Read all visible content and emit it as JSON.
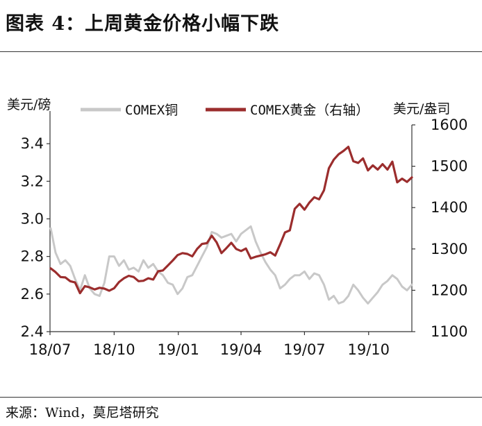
{
  "title": "图表 4：上周黄金价格小幅下跌",
  "source": "来源：Wind，莫尼塔研究",
  "colors": {
    "copper": "#c8c8c8",
    "gold": "#9b2d2d",
    "axis": "#333333"
  },
  "chart_data": {
    "type": "line",
    "x_tick_labels": [
      "18/07",
      "18/10",
      "19/01",
      "19/04",
      "19/07",
      "19/10"
    ],
    "left_axis": {
      "unit": "美元/磅",
      "ylim": [
        2.4,
        3.5
      ],
      "ticks": [
        "2.4",
        "2.6",
        "2.8",
        "3.0",
        "3.2",
        "3.4"
      ]
    },
    "right_axis": {
      "unit": "美元/盎司",
      "ylim": [
        1100,
        1600
      ],
      "ticks": [
        "1100",
        "1200",
        "1300",
        "1400",
        "1500",
        "1600"
      ]
    },
    "series": [
      {
        "name": "COMEX铜",
        "axis": "left",
        "x": [
          "2018-07-02",
          "2018-07-09",
          "2018-07-16",
          "2018-07-23",
          "2018-07-30",
          "2018-08-06",
          "2018-08-13",
          "2018-08-20",
          "2018-08-27",
          "2018-09-03",
          "2018-09-10",
          "2018-09-17",
          "2018-09-24",
          "2018-10-01",
          "2018-10-08",
          "2018-10-15",
          "2018-10-22",
          "2018-10-29",
          "2018-11-05",
          "2018-11-12",
          "2018-11-19",
          "2018-11-26",
          "2018-12-03",
          "2018-12-10",
          "2018-12-17",
          "2018-12-24",
          "2018-12-31",
          "2019-01-07",
          "2019-01-14",
          "2019-01-21",
          "2019-01-28",
          "2019-02-04",
          "2019-02-11",
          "2019-02-18",
          "2019-02-25",
          "2019-03-04",
          "2019-03-11",
          "2019-03-18",
          "2019-03-25",
          "2019-04-01",
          "2019-04-08",
          "2019-04-15",
          "2019-04-22",
          "2019-04-29",
          "2019-05-06",
          "2019-05-13",
          "2019-05-20",
          "2019-05-27",
          "2019-06-03",
          "2019-06-10",
          "2019-06-17",
          "2019-06-24",
          "2019-07-01",
          "2019-07-08",
          "2019-07-15",
          "2019-07-22",
          "2019-07-29",
          "2019-08-05",
          "2019-08-12",
          "2019-08-19",
          "2019-08-26",
          "2019-09-02",
          "2019-09-09",
          "2019-09-16",
          "2019-09-23",
          "2019-09-30",
          "2019-10-07",
          "2019-10-14",
          "2019-10-21",
          "2019-10-28",
          "2019-11-04",
          "2019-11-11",
          "2019-11-18",
          "2019-11-25",
          "2019-12-02"
        ],
        "values": [
          2.95,
          2.82,
          2.76,
          2.78,
          2.75,
          2.68,
          2.62,
          2.7,
          2.63,
          2.6,
          2.59,
          2.66,
          2.8,
          2.8,
          2.75,
          2.78,
          2.73,
          2.74,
          2.72,
          2.78,
          2.74,
          2.76,
          2.72,
          2.7,
          2.66,
          2.65,
          2.6,
          2.63,
          2.69,
          2.7,
          2.75,
          2.8,
          2.85,
          2.93,
          2.92,
          2.9,
          2.91,
          2.92,
          2.88,
          2.92,
          2.94,
          2.96,
          2.88,
          2.82,
          2.77,
          2.73,
          2.7,
          2.63,
          2.65,
          2.68,
          2.7,
          2.7,
          2.72,
          2.68,
          2.71,
          2.7,
          2.65,
          2.57,
          2.59,
          2.55,
          2.56,
          2.59,
          2.65,
          2.62,
          2.58,
          2.55,
          2.58,
          2.61,
          2.65,
          2.67,
          2.7,
          2.68,
          2.64,
          2.62,
          2.65
        ]
      },
      {
        "name": "COMEX黄金（右轴）",
        "axis": "right",
        "x": [
          "2018-07-02",
          "2018-07-09",
          "2018-07-16",
          "2018-07-23",
          "2018-07-30",
          "2018-08-06",
          "2018-08-13",
          "2018-08-20",
          "2018-08-27",
          "2018-09-03",
          "2018-09-10",
          "2018-09-17",
          "2018-09-24",
          "2018-10-01",
          "2018-10-08",
          "2018-10-15",
          "2018-10-22",
          "2018-10-29",
          "2018-11-05",
          "2018-11-12",
          "2018-11-19",
          "2018-11-26",
          "2018-12-03",
          "2018-12-10",
          "2018-12-17",
          "2018-12-24",
          "2018-12-31",
          "2019-01-07",
          "2019-01-14",
          "2019-01-21",
          "2019-01-28",
          "2019-02-04",
          "2019-02-11",
          "2019-02-18",
          "2019-02-25",
          "2019-03-04",
          "2019-03-11",
          "2019-03-18",
          "2019-03-25",
          "2019-04-01",
          "2019-04-08",
          "2019-04-15",
          "2019-04-22",
          "2019-04-29",
          "2019-05-06",
          "2019-05-13",
          "2019-05-20",
          "2019-05-27",
          "2019-06-03",
          "2019-06-10",
          "2019-06-17",
          "2019-06-24",
          "2019-07-01",
          "2019-07-08",
          "2019-07-15",
          "2019-07-22",
          "2019-07-29",
          "2019-08-05",
          "2019-08-12",
          "2019-08-19",
          "2019-08-26",
          "2019-09-02",
          "2019-09-09",
          "2019-09-16",
          "2019-09-23",
          "2019-09-30",
          "2019-10-07",
          "2019-10-14",
          "2019-10-21",
          "2019-10-28",
          "2019-11-04",
          "2019-11-11",
          "2019-11-18",
          "2019-11-25",
          "2019-12-02"
        ],
        "values": [
          1253,
          1244,
          1232,
          1231,
          1222,
          1219,
          1193,
          1210,
          1207,
          1202,
          1206,
          1204,
          1199,
          1205,
          1220,
          1229,
          1235,
          1232,
          1222,
          1223,
          1229,
          1226,
          1246,
          1248,
          1260,
          1272,
          1285,
          1290,
          1288,
          1282,
          1300,
          1312,
          1314,
          1332,
          1316,
          1290,
          1302,
          1315,
          1300,
          1295,
          1301,
          1277,
          1281,
          1284,
          1287,
          1292,
          1284,
          1311,
          1340,
          1345,
          1397,
          1409,
          1395,
          1412,
          1425,
          1420,
          1442,
          1495,
          1516,
          1529,
          1537,
          1547,
          1512,
          1508,
          1519,
          1490,
          1502,
          1492,
          1505,
          1492,
          1511,
          1461,
          1470,
          1462,
          1473
        ]
      }
    ]
  }
}
